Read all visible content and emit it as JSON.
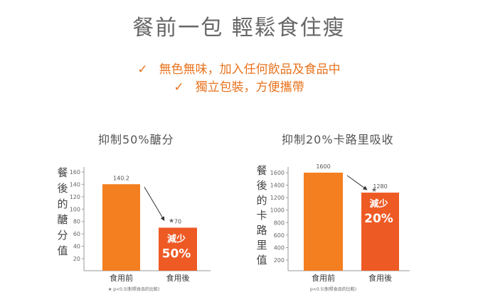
{
  "headline": "餐前一包 輕鬆食住瘦",
  "features": [
    {
      "check": "✓",
      "text": "無色無味，加入任何飲品及食品中"
    },
    {
      "check": "✓",
      "text": "獨立包裝，方便攜帶"
    }
  ],
  "colors": {
    "orange": "#f47f20",
    "red_orange": "#ee5a24",
    "axis": "#999999",
    "accent": "#e8731e"
  },
  "chart_data": [
    {
      "type": "bar",
      "title": "抑制50%醣分",
      "ylabel": "餐後的醣分值",
      "ylabel_chars": [
        "餐",
        "後",
        "的",
        "醣",
        "分",
        "值"
      ],
      "categories": [
        "食用前",
        "食用後"
      ],
      "values": [
        140.2,
        70
      ],
      "value_labels": [
        "140.2",
        "70"
      ],
      "yticks": [
        20,
        40,
        60,
        80,
        100,
        120,
        140,
        160
      ],
      "ylim": [
        0,
        160
      ],
      "reduction_label": [
        "減少",
        "50%"
      ],
      "star": "★",
      "footnote": "★ p<0.5(對照食品的比較)"
    },
    {
      "type": "bar",
      "title": "抑制20%卡路里吸收",
      "ylabel": "餐後的卡路里值",
      "ylabel_chars": [
        "餐",
        "後",
        "的",
        "卡",
        "路",
        "里",
        "值"
      ],
      "categories": [
        "食用前",
        "食用後"
      ],
      "values": [
        1600,
        1280
      ],
      "value_labels": [
        "1600",
        "1280"
      ],
      "yticks": [
        200,
        400,
        600,
        800,
        1000,
        1200,
        1400,
        1600
      ],
      "ylim": [
        0,
        1650
      ],
      "reduction_label": [
        "減少",
        "20%"
      ],
      "star": "★",
      "footnote": "p<0.5(對照食品的比較)"
    }
  ]
}
